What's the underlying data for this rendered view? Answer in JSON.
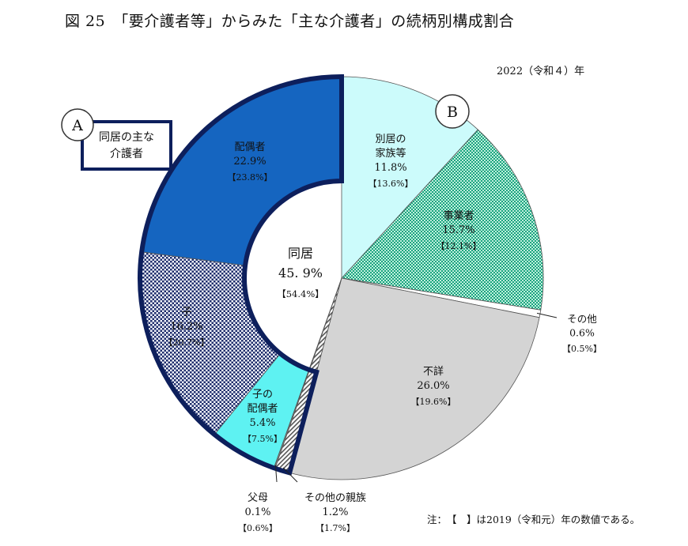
{
  "title": "図 25　「要介護者等」からみた「主な介護者」の続柄別構成割合",
  "year_label": "2022（令和４）年",
  "note": "注：　【　】は2019（令和元）年の数値である。",
  "callout_a": {
    "letter": "A",
    "text_line1": "同居の主な",
    "text_line2": "介護者"
  },
  "callout_b": {
    "letter": "B"
  },
  "center": {
    "label": "同居",
    "value": "45. 9%",
    "prev": "【54.4%】"
  },
  "colors": {
    "spouse": "#1565c0",
    "child": "#1e2d6b",
    "child_spouse": "#5ef2f2",
    "parent": "#888888",
    "other_rel": "#555555",
    "separate": "#ccfbfb",
    "business": "#1aa37f",
    "other": "#ffffff",
    "unknown": "#d4d4d4",
    "outline": "#0d1f5c"
  },
  "chart_data": {
    "type": "pie",
    "title": "「要介護者等」からみた「主な介護者」の続柄別構成割合",
    "unit": "%",
    "slices": [
      {
        "key": "separate",
        "label_lines": [
          "別居の",
          "家族等"
        ],
        "value": 11.8,
        "value_text": "11.8%",
        "prev_text": "【13.6%】",
        "prev": 13.6
      },
      {
        "key": "business",
        "label_lines": [
          "事業者"
        ],
        "value": 15.7,
        "value_text": "15.7%",
        "prev_text": "【12.1%】",
        "prev": 12.1
      },
      {
        "key": "other",
        "label_lines": [
          "その他"
        ],
        "value": 0.6,
        "value_text": "0.6%",
        "prev_text": "【0.5%】",
        "prev": 0.5
      },
      {
        "key": "unknown",
        "label_lines": [
          "不詳"
        ],
        "value": 26.0,
        "value_text": "26.0%",
        "prev_text": "【19.6%】",
        "prev": 19.6
      },
      {
        "key": "other_rel",
        "label_lines": [
          "その他の親族"
        ],
        "value": 1.2,
        "value_text": "1.2%",
        "prev_text": "【1.7%】",
        "prev": 1.7
      },
      {
        "key": "parent",
        "label_lines": [
          "父母"
        ],
        "value": 0.1,
        "value_text": "0.1%",
        "prev_text": "【0.6%】",
        "prev": 0.6
      },
      {
        "key": "child_spouse",
        "label_lines": [
          "子の",
          "配偶者"
        ],
        "value": 5.4,
        "value_text": "5.4%",
        "prev_text": "【7.5%】",
        "prev": 7.5
      },
      {
        "key": "child",
        "label_lines": [
          "子"
        ],
        "value": 16.2,
        "value_text": "16.2%",
        "prev_text": "【20.7%】",
        "prev": 20.7
      },
      {
        "key": "spouse",
        "label_lines": [
          "配偶者"
        ],
        "value": 22.9,
        "value_text": "22.9%",
        "prev_text": "【23.8%】",
        "prev": 23.8
      }
    ],
    "cohabiting_total": 45.9,
    "cohabiting_prev": 54.4
  }
}
